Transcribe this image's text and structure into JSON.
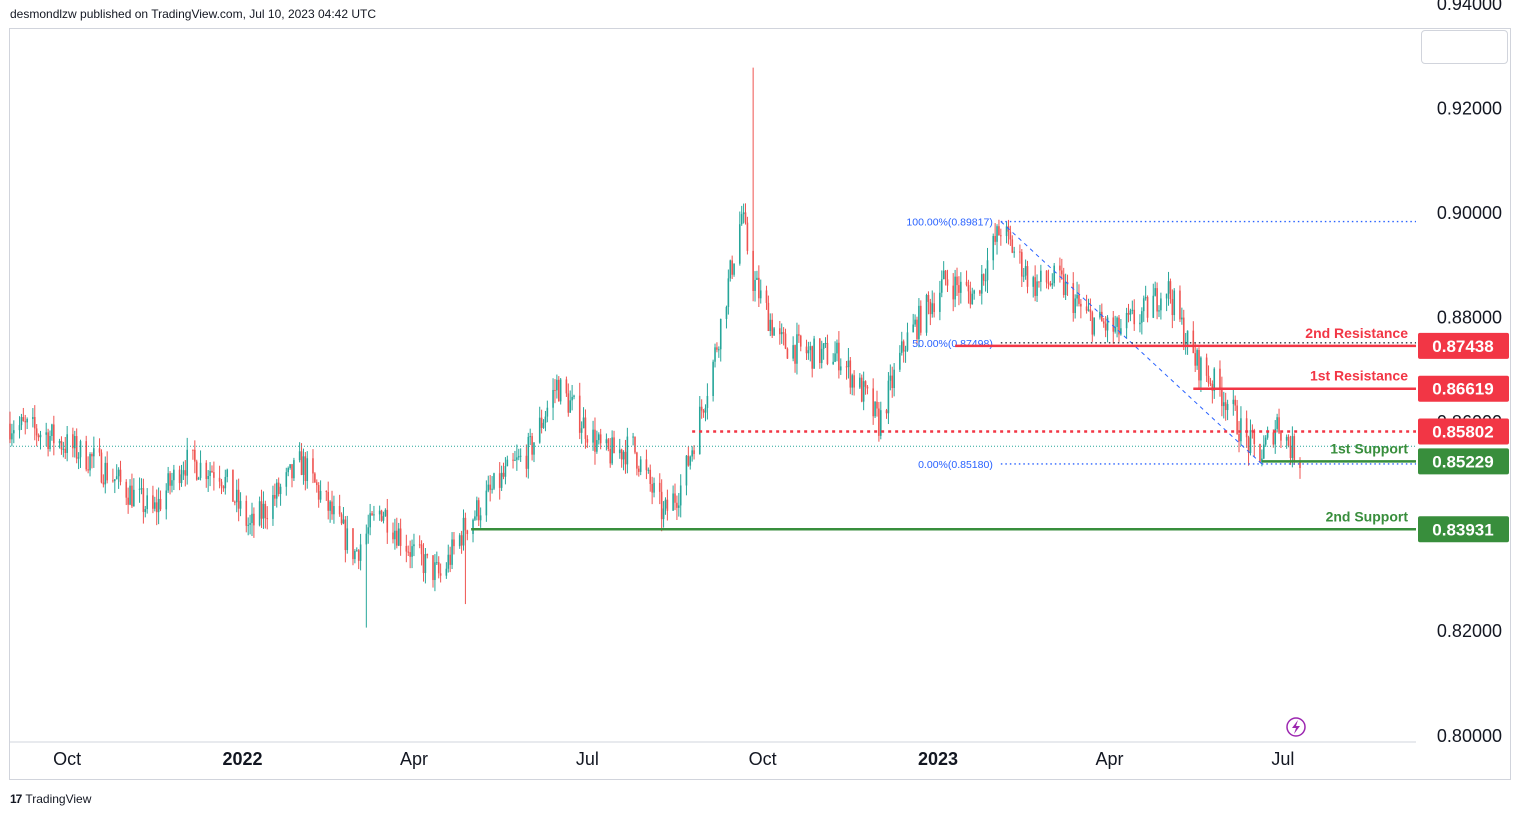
{
  "header": {
    "text": "desmondlzw published on TradingView.com, Jul 10, 2023 04:42 UTC"
  },
  "footer": {
    "logo": "17",
    "brand": "TradingView"
  },
  "colors": {
    "up": "#26a69a",
    "down": "#ef5350",
    "resistance": "#f23645",
    "support": "#388e3c",
    "fib": "#2962ff",
    "text": "#131722"
  },
  "chart_data": {
    "type": "candlestick",
    "title": "",
    "xlabel": "",
    "ylabel": "",
    "ylim": [
      0.799,
      0.935
    ],
    "x_ticks": [
      {
        "label": "Oct",
        "date": "2021-10-01",
        "bold": false
      },
      {
        "label": "2022",
        "date": "2022-01-01",
        "bold": true
      },
      {
        "label": "Apr",
        "date": "2022-04-01",
        "bold": false
      },
      {
        "label": "Jul",
        "date": "2022-07-01",
        "bold": false
      },
      {
        "label": "Oct",
        "date": "2022-10-01",
        "bold": false
      },
      {
        "label": "2023",
        "date": "2023-01-01",
        "bold": true
      },
      {
        "label": "Apr",
        "date": "2023-04-01",
        "bold": false
      },
      {
        "label": "Jul",
        "date": "2023-07-01",
        "bold": false
      }
    ],
    "y_ticks": [
      "0.94000",
      "0.92000",
      "0.90000",
      "0.88000",
      "0.86000",
      "0.82000",
      "0.80000"
    ],
    "close_series": {
      "dates": [
        "2021-09-01",
        "2021-09-20",
        "2021-10-15",
        "2021-11-15",
        "2021-12-01",
        "2021-12-20",
        "2022-01-05",
        "2022-02-01",
        "2022-03-01",
        "2022-03-15",
        "2022-04-01",
        "2022-04-15",
        "2022-04-28",
        "2022-05-15",
        "2022-06-01",
        "2022-06-15",
        "2022-07-10",
        "2022-07-25",
        "2022-08-10",
        "2022-08-20",
        "2022-09-05",
        "2022-09-20",
        "2022-09-26",
        "2022-10-10",
        "2022-10-25",
        "2022-11-10",
        "2022-11-25",
        "2022-12-01",
        "2022-12-15",
        "2023-01-05",
        "2023-01-20",
        "2023-02-03",
        "2023-02-20",
        "2023-03-05",
        "2023-03-20",
        "2023-04-05",
        "2023-04-20",
        "2023-05-01",
        "2023-05-15",
        "2023-06-01",
        "2023-06-12",
        "2023-06-20",
        "2023-06-28",
        "2023-07-05",
        "2023-07-10"
      ],
      "values": [
        0.8595,
        0.8575,
        0.8525,
        0.8425,
        0.8522,
        0.8505,
        0.8395,
        0.852,
        0.8348,
        0.8432,
        0.8345,
        0.8302,
        0.84,
        0.848,
        0.8545,
        0.867,
        0.8535,
        0.855,
        0.842,
        0.848,
        0.871,
        0.8995,
        0.887,
        0.875,
        0.873,
        0.8725,
        0.864,
        0.8595,
        0.8752,
        0.887,
        0.884,
        0.897,
        0.886,
        0.887,
        0.88,
        0.877,
        0.881,
        0.886,
        0.872,
        0.8645,
        0.856,
        0.8535,
        0.86,
        0.855,
        0.8528
      ]
    },
    "extremes": [
      {
        "date": "2022-09-26",
        "high": 0.9276
      },
      {
        "date": "2022-03-07",
        "low": 0.8205
      },
      {
        "date": "2022-04-28",
        "low": 0.825
      }
    ],
    "current_price_line": 0.8552,
    "fibonacci": {
      "from_date": "2023-02-03",
      "to_date": "2023-06-20",
      "levels": [
        {
          "label": "100.00%(0.89817)",
          "value": 0.89817
        },
        {
          "label": "50.00%(0.87498)",
          "value": 0.87498
        },
        {
          "label": "0.00%(0.85180)",
          "value": 0.8518
        }
      ]
    },
    "levels": [
      {
        "name": "2nd Resistance",
        "value": 0.87438,
        "price_label": "0.87438",
        "kind": "resistance",
        "from_date": "2023-01-10"
      },
      {
        "name": "1st Resistance",
        "value": 0.86619,
        "price_label": "0.86619",
        "kind": "resistance",
        "from_date": "2023-05-15"
      },
      {
        "name": "",
        "value": 0.85802,
        "price_label": "0.85802",
        "kind": "pivot",
        "from_date": "2022-08-25"
      },
      {
        "name": "1st Support",
        "value": 0.85229,
        "price_label": "0.85229",
        "kind": "support",
        "from_date": "2023-06-20"
      },
      {
        "name": "2nd Support",
        "value": 0.83931,
        "price_label": "0.83931",
        "kind": "support",
        "from_date": "2022-05-01"
      }
    ]
  }
}
